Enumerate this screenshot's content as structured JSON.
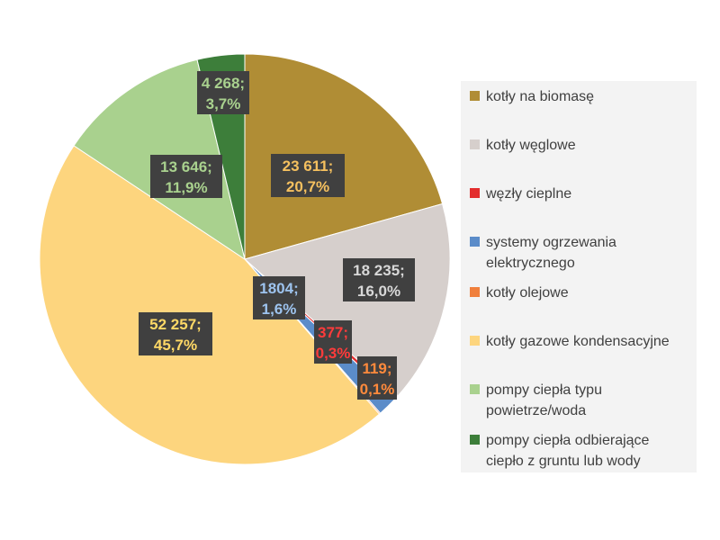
{
  "chart_data": {
    "type": "pie",
    "start_angle_deg": 0,
    "direction": "clockwise",
    "legend_position": "right",
    "slices": [
      {
        "label": "kotły na biomasę",
        "value": 23611,
        "value_label": "23 611;",
        "pct_label": "20,7%",
        "color": "#b08d35",
        "label_color": "#f5c05f"
      },
      {
        "label": "kotły węglowe",
        "value": 18235,
        "value_label": "18 235;",
        "pct_label": "16,0%",
        "color": "#d6cfcc",
        "label_color": "#d8d8d8"
      },
      {
        "label": "węzły cieplne",
        "value": 377,
        "value_label": "377;",
        "pct_label": "0,3%",
        "color": "#e32d2d",
        "label_color": "#ff3b3b"
      },
      {
        "label": "systemy ogrzewania elektrycznego",
        "value": 1804,
        "value_label": "1804;",
        "pct_label": "1,6%",
        "color": "#5b8cc9",
        "label_color": "#9dc3ee"
      },
      {
        "label": "kotły olejowe",
        "value": 119,
        "value_label": "119;",
        "pct_label": "0,1%",
        "color": "#f07f3c",
        "label_color": "#ff8a3c"
      },
      {
        "label": "kotły gazowe kondensacyjne",
        "value": 52257,
        "value_label": "52 257;",
        "pct_label": "45,7%",
        "color": "#fdd57e",
        "label_color": "#ffd966"
      },
      {
        "label": "pompy ciepła typu powietrze/woda",
        "value": 13646,
        "value_label": "13 646;",
        "pct_label": "11,9%",
        "color": "#a9d18e",
        "label_color": "#a9d18e"
      },
      {
        "label": "pompy ciepła odbierające ciepło z gruntu lub wody",
        "value": 4268,
        "value_label": "4 268;",
        "pct_label": "3,7%",
        "color": "#3d7e3a",
        "label_color": "#a9d18e"
      }
    ],
    "legend_lines": [
      [
        "kotły na biomasę"
      ],
      [
        "kotły węglowe"
      ],
      [
        "węzły cieplne"
      ],
      [
        "systemy ogrzewania",
        "elektrycznego"
      ],
      [
        "kotły olejowe"
      ],
      [
        "kotły gazowe kondensacyjne"
      ],
      [
        "pompy ciepła typu",
        "powietrze/woda"
      ],
      [
        "pompy ciepła odbierające",
        "ciepło z gruntu lub wody"
      ]
    ]
  }
}
